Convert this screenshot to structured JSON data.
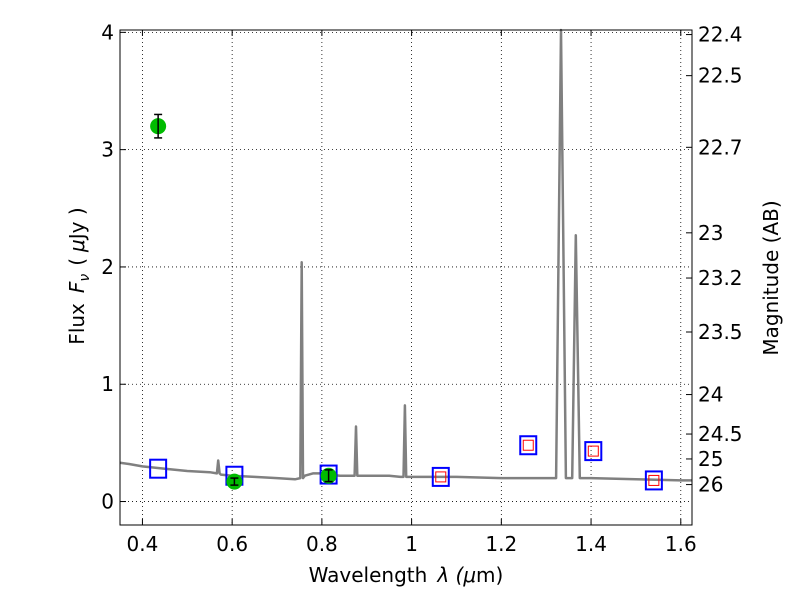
{
  "chart_data": {
    "type": "scatter",
    "xlabel_parts": [
      "Wavelength",
      "λ (",
      "μ",
      "m)"
    ],
    "ylabel_parts": [
      "Flux",
      "F",
      "ν",
      "(",
      "μ",
      "Jy )"
    ],
    "ylabel_right": "Magnitude (AB)",
    "xlim": [
      0.35,
      1.625
    ],
    "ylim": [
      -0.2,
      4.02
    ],
    "x_ticks": [
      0.4,
      0.6,
      0.8,
      1.0,
      1.2,
      1.4,
      1.6
    ],
    "x_tick_labels": [
      "0.4",
      "0.6",
      "0.8",
      "1",
      "1.2",
      "1.4",
      "1.6"
    ],
    "y_ticks": [
      0,
      1,
      2,
      3,
      4
    ],
    "y_tick_labels": [
      "0",
      "1",
      "2",
      "3",
      "4"
    ],
    "mag_ticks": [
      22.4,
      22.5,
      22.7,
      23,
      23.2,
      23.5,
      24,
      24.5,
      25,
      26
    ],
    "mag_tick_labels": [
      "22.4",
      "22.5",
      "22.7",
      "23",
      "23.2",
      "23.5",
      "24",
      "24.5",
      "25",
      "26"
    ],
    "grid": true,
    "colors": {
      "model_spectrum": "#808080",
      "observed_points": "#00bb00",
      "model_photometry_boxes": "#0000ff",
      "observed_boxes": "#ff0000"
    },
    "series": [
      {
        "kind": "model_spectrum",
        "x": [
          0.35,
          0.37,
          0.4,
          0.45,
          0.5,
          0.55,
          0.566,
          0.569,
          0.572,
          0.575,
          0.6,
          0.65,
          0.7,
          0.74,
          0.752,
          0.755,
          0.758,
          0.762,
          0.78,
          0.8,
          0.82,
          0.84,
          0.86,
          0.873,
          0.876,
          0.879,
          0.9,
          0.95,
          0.975,
          0.982,
          0.985,
          0.988,
          1.0,
          1.05,
          1.1,
          1.2,
          1.3,
          1.316,
          1.322,
          1.333,
          1.344,
          1.352,
          1.358,
          1.366,
          1.375,
          1.38,
          1.4,
          1.5,
          1.6,
          1.625
        ],
        "y": [
          0.33,
          0.32,
          0.3,
          0.28,
          0.26,
          0.25,
          0.24,
          0.35,
          0.24,
          0.23,
          0.22,
          0.21,
          0.2,
          0.19,
          0.2,
          2.04,
          0.2,
          0.22,
          0.24,
          0.24,
          0.23,
          0.22,
          0.22,
          0.22,
          0.64,
          0.22,
          0.22,
          0.22,
          0.21,
          0.21,
          0.82,
          0.21,
          0.21,
          0.21,
          0.21,
          0.2,
          0.2,
          0.2,
          0.2,
          4.02,
          0.2,
          0.2,
          0.2,
          2.27,
          0.2,
          0.2,
          0.2,
          0.19,
          0.18,
          0.18
        ]
      },
      {
        "kind": "model_photometry_boxes",
        "points": [
          {
            "x": 0.435,
            "y": 0.28
          },
          {
            "x": 0.605,
            "y": 0.22
          },
          {
            "x": 0.815,
            "y": 0.23
          },
          {
            "x": 1.065,
            "y": 0.21
          },
          {
            "x": 1.26,
            "y": 0.48
          },
          {
            "x": 1.405,
            "y": 0.43
          },
          {
            "x": 1.54,
            "y": 0.18
          }
        ]
      },
      {
        "kind": "observed_boxes",
        "points": [
          {
            "x": 1.065,
            "y": 0.21
          },
          {
            "x": 1.26,
            "y": 0.48
          },
          {
            "x": 1.405,
            "y": 0.43
          },
          {
            "x": 1.54,
            "y": 0.18
          }
        ]
      },
      {
        "kind": "observed_points",
        "points": [
          {
            "x": 0.435,
            "y": 3.2,
            "err": 0.1
          },
          {
            "x": 0.605,
            "y": 0.17,
            "err": 0.03
          },
          {
            "x": 0.815,
            "y": 0.22,
            "err": 0.05
          }
        ]
      }
    ]
  }
}
